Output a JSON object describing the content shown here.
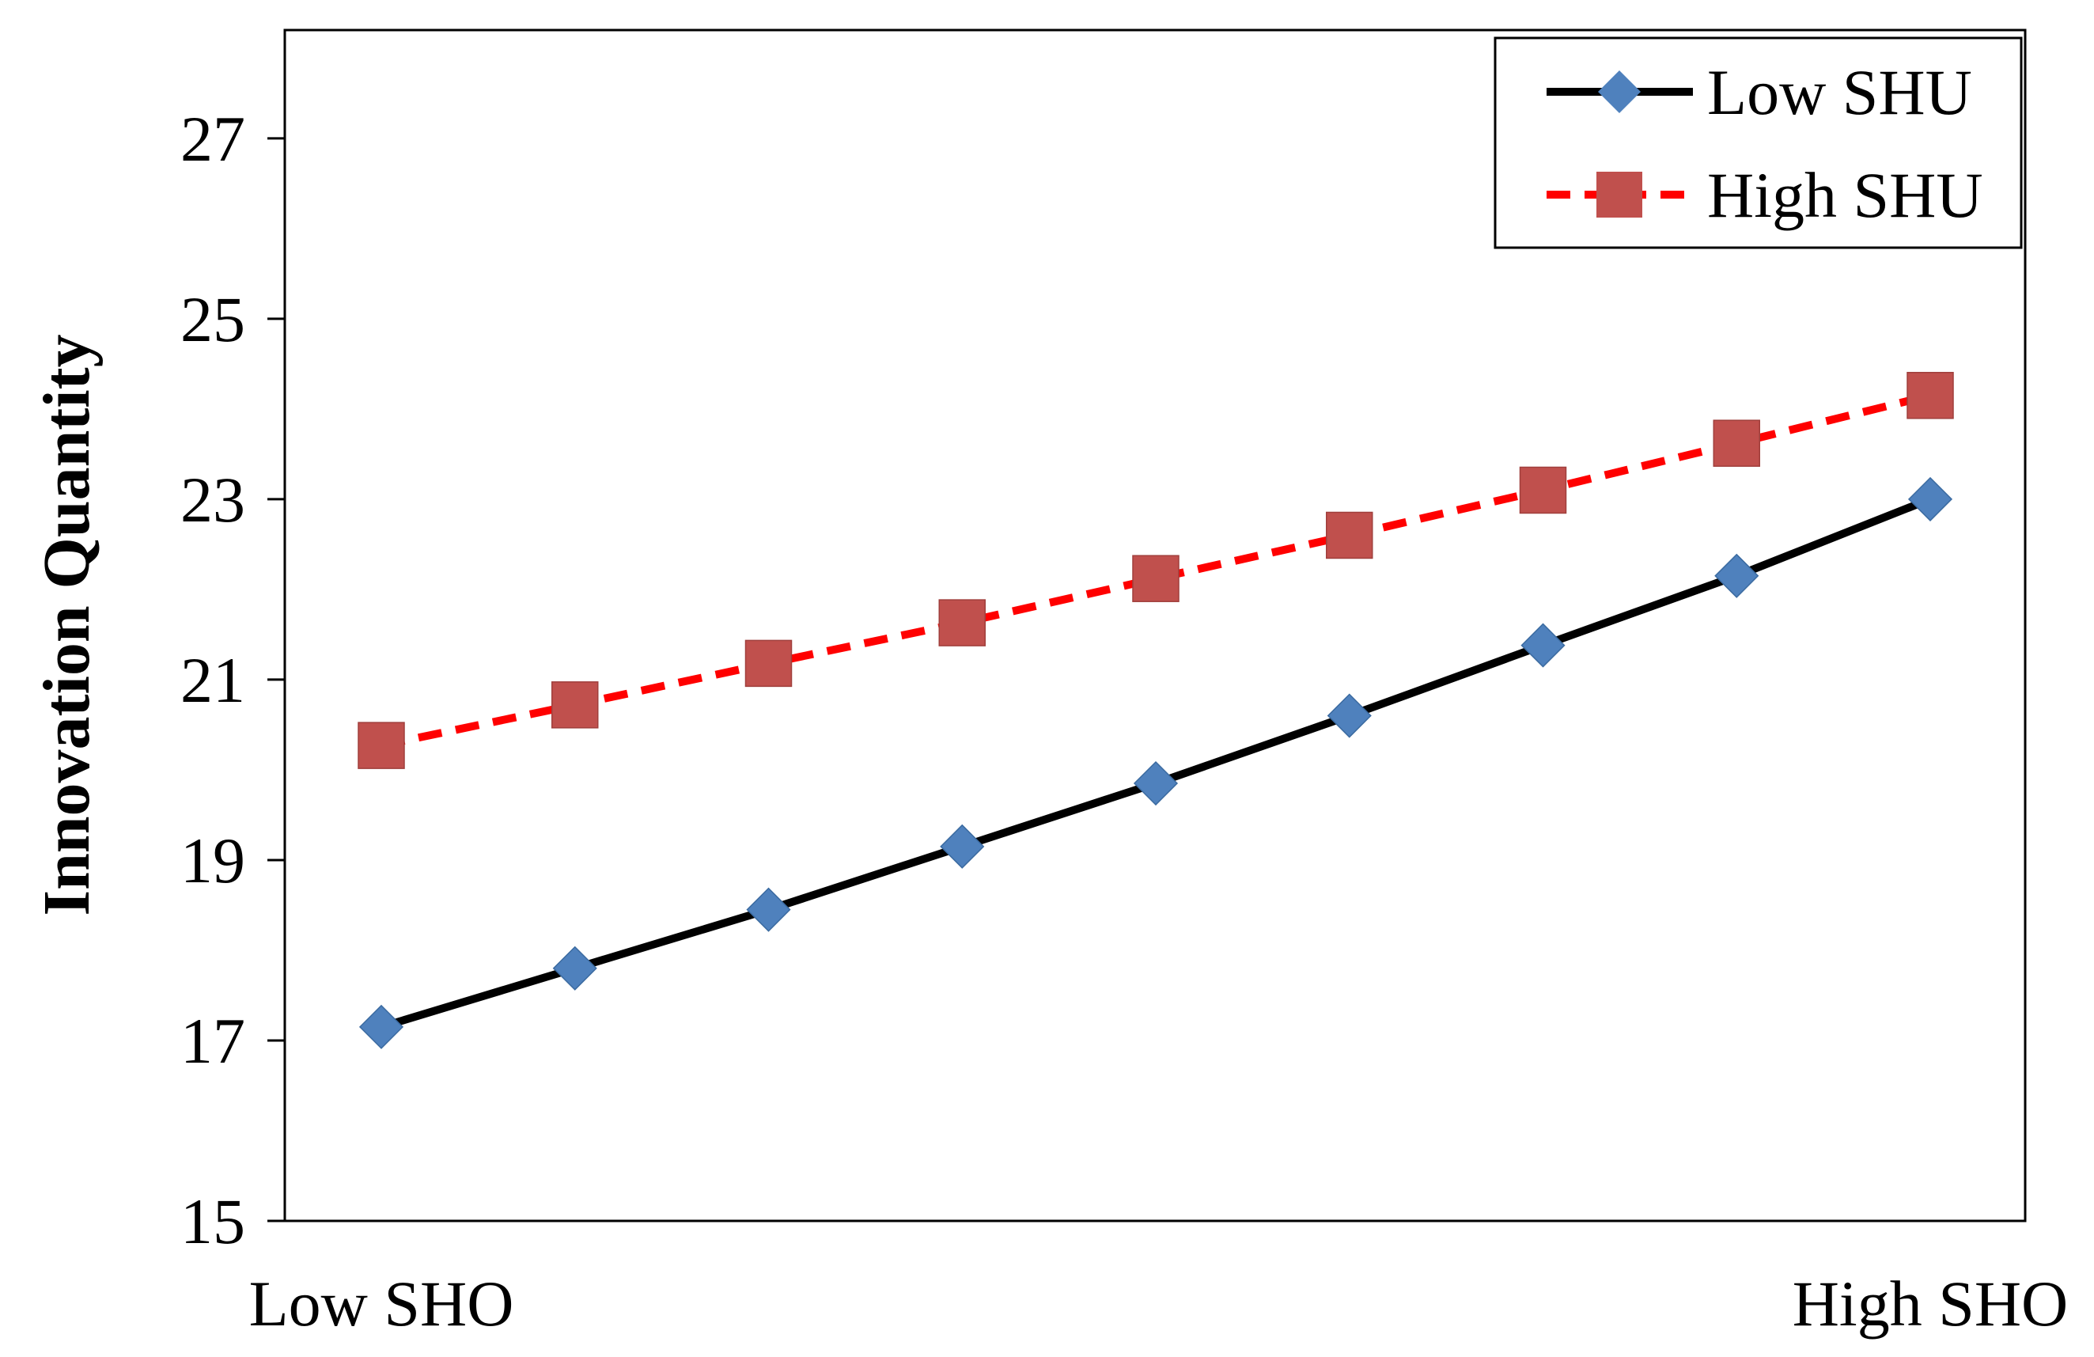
{
  "chart_data": {
    "type": "line",
    "title": "",
    "ylabel": "Innovation Quantity",
    "xlabel": "",
    "ylim": [
      15,
      28.2
    ],
    "yticks": [
      15,
      17,
      19,
      21,
      23,
      25,
      27
    ],
    "x_tick_labels": [
      "Low SHO",
      "High SHO"
    ],
    "x_count": 9,
    "grid": false,
    "legend_position": "top-right",
    "series": [
      {
        "name": "Low SHU",
        "color": "#000000",
        "marker": "diamond",
        "marker_color": "#4f81bd",
        "dash": "solid",
        "values": [
          17.15,
          17.8,
          18.45,
          19.15,
          19.85,
          20.6,
          21.38,
          22.15,
          23.0
        ]
      },
      {
        "name": "High SHU",
        "color": "#ff0000",
        "marker": "square",
        "marker_color": "#c0504d",
        "dash": "dashed",
        "values": [
          20.27,
          20.72,
          21.18,
          21.63,
          22.12,
          22.6,
          23.1,
          23.62,
          24.15
        ]
      }
    ]
  }
}
